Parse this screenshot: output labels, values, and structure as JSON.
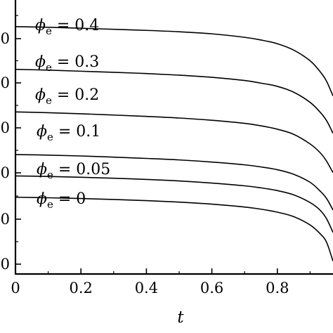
{
  "chart_data": {
    "type": "line",
    "title": "",
    "xlabel": "t",
    "ylabel": "",
    "xlim": [
      0,
      0.97
    ],
    "x_ticks": [
      0,
      0.2,
      0.4,
      0.6,
      0.8
    ],
    "x_tick_labels": [
      "0",
      "0.2",
      "0.4",
      "0.6",
      "0.8"
    ],
    "y_tick_labels": [
      "0",
      "0",
      "0",
      "0",
      "0",
      "0"
    ],
    "grid": false,
    "legend": "inline labels above each curve",
    "series": [
      {
        "name": "ϕe = 0.4",
        "label": {
          "symbol": "ϕ",
          "subscript": "e",
          "rest": " = 0.4"
        },
        "x": [
          0,
          0.1,
          0.2,
          0.3,
          0.4,
          0.5,
          0.6,
          0.7,
          0.75,
          0.8,
          0.85,
          0.9,
          0.93,
          0.95,
          0.97
        ],
        "y": [
          1.0,
          0.994,
          0.985,
          0.975,
          0.965,
          0.952,
          0.933,
          0.9,
          0.875,
          0.84,
          0.78,
          0.68,
          0.58,
          0.49,
          0.35
        ]
      },
      {
        "name": "ϕe = 0.3",
        "label": {
          "symbol": "ϕ",
          "subscript": "e",
          "rest": " = 0.3"
        },
        "x": [
          0,
          0.1,
          0.2,
          0.3,
          0.4,
          0.5,
          0.6,
          0.7,
          0.75,
          0.8,
          0.85,
          0.9,
          0.93,
          0.95,
          0.97
        ],
        "y": [
          0.6,
          0.592,
          0.582,
          0.572,
          0.56,
          0.545,
          0.525,
          0.495,
          0.47,
          0.44,
          0.385,
          0.29,
          0.2,
          0.12,
          0.0
        ]
      },
      {
        "name": "ϕe = 0.2",
        "label": {
          "symbol": "ϕ",
          "subscript": "e",
          "rest": " = 0.2"
        },
        "x": [
          0,
          0.1,
          0.2,
          0.3,
          0.4,
          0.5,
          0.6,
          0.7,
          0.75,
          0.8,
          0.85,
          0.9,
          0.93,
          0.95,
          0.97
        ],
        "y": [
          0.2,
          0.193,
          0.183,
          0.171,
          0.158,
          0.143,
          0.122,
          0.093,
          0.07,
          0.038,
          -0.01,
          -0.1,
          -0.18,
          -0.26,
          -0.37
        ]
      },
      {
        "name": "ϕe = 0.1",
        "label": {
          "symbol": "ϕ",
          "subscript": "e",
          "rest": " = 0.1"
        },
        "x": [
          0,
          0.1,
          0.2,
          0.3,
          0.4,
          0.5,
          0.6,
          0.7,
          0.75,
          0.8,
          0.85,
          0.9,
          0.93,
          0.95,
          0.97
        ],
        "y": [
          -0.2,
          -0.205,
          -0.213,
          -0.224,
          -0.236,
          -0.25,
          -0.27,
          -0.296,
          -0.316,
          -0.342,
          -0.385,
          -0.46,
          -0.54,
          -0.61,
          -0.72
        ]
      },
      {
        "name": "ϕe = 0.05",
        "label": {
          "symbol": "ϕ",
          "subscript": "e",
          "rest": " = 0.05"
        },
        "x": [
          0,
          0.1,
          0.2,
          0.3,
          0.4,
          0.5,
          0.6,
          0.7,
          0.75,
          0.8,
          0.85,
          0.9,
          0.93,
          0.95,
          0.97
        ],
        "y": [
          -0.4,
          -0.405,
          -0.413,
          -0.422,
          -0.433,
          -0.447,
          -0.467,
          -0.493,
          -0.512,
          -0.538,
          -0.578,
          -0.65,
          -0.72,
          -0.8,
          -0.93
        ]
      },
      {
        "name": "ϕe = 0",
        "label": {
          "symbol": "ϕ",
          "subscript": "e",
          "rest": " = 0"
        },
        "x": [
          0,
          0.1,
          0.2,
          0.3,
          0.4,
          0.5,
          0.6,
          0.7,
          0.75,
          0.8,
          0.85,
          0.9,
          0.93,
          0.95,
          0.97
        ],
        "y": [
          -0.6,
          -0.605,
          -0.612,
          -0.621,
          -0.632,
          -0.646,
          -0.665,
          -0.692,
          -0.712,
          -0.74,
          -0.782,
          -0.86,
          -0.94,
          -1.02,
          -1.2
        ]
      }
    ]
  }
}
